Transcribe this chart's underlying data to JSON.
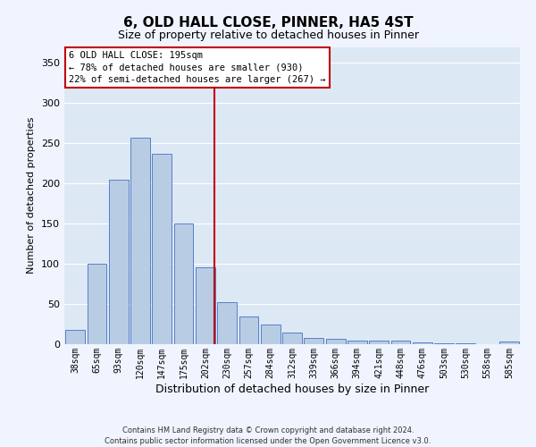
{
  "title": "6, OLD HALL CLOSE, PINNER, HA5 4ST",
  "subtitle": "Size of property relative to detached houses in Pinner",
  "xlabel": "Distribution of detached houses by size in Pinner",
  "ylabel": "Number of detached properties",
  "bar_labels": [
    "38sqm",
    "65sqm",
    "93sqm",
    "120sqm",
    "147sqm",
    "175sqm",
    "202sqm",
    "230sqm",
    "257sqm",
    "284sqm",
    "312sqm",
    "339sqm",
    "366sqm",
    "394sqm",
    "421sqm",
    "448sqm",
    "476sqm",
    "503sqm",
    "530sqm",
    "558sqm",
    "585sqm"
  ],
  "bar_values": [
    18,
    100,
    205,
    257,
    237,
    150,
    96,
    52,
    35,
    25,
    14,
    8,
    7,
    5,
    4,
    4,
    2,
    1,
    1,
    0,
    3
  ],
  "bar_color": "#b8cce4",
  "bar_edgecolor": "#4472c4",
  "vline_x": 6.4,
  "vline_color": "#c00000",
  "ylim": [
    0,
    370
  ],
  "yticks": [
    0,
    50,
    100,
    150,
    200,
    250,
    300,
    350
  ],
  "annotation_title": "6 OLD HALL CLOSE: 195sqm",
  "annotation_line1": "← 78% of detached houses are smaller (930)",
  "annotation_line2": "22% of semi-detached houses are larger (267) →",
  "footer1": "Contains HM Land Registry data © Crown copyright and database right 2024.",
  "footer2": "Contains public sector information licensed under the Open Government Licence v3.0.",
  "fig_bg": "#f0f4ff",
  "ax_bg": "#dde8f5",
  "grid_color": "#ffffff",
  "title_fontsize": 11,
  "subtitle_fontsize": 9,
  "ylabel_fontsize": 8,
  "xlabel_fontsize": 9,
  "tick_fontsize": 7,
  "ann_fontsize": 7.5,
  "footer_fontsize": 6
}
